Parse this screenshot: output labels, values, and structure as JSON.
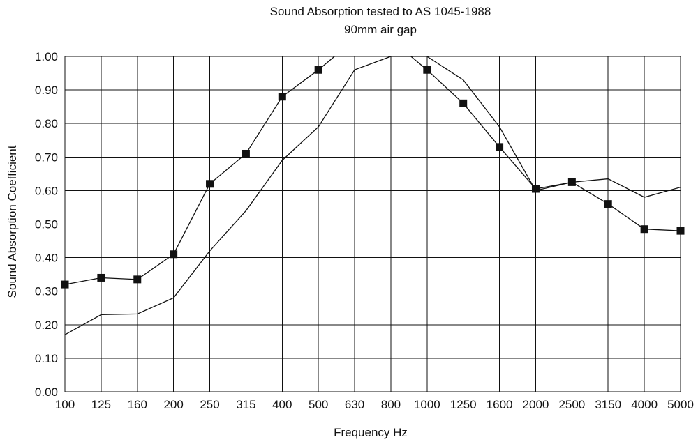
{
  "chart_data": {
    "type": "line",
    "title": "Sound Absorption tested to AS 1045-1988",
    "subtitle": "90mm air gap",
    "xlabel": "Frequency Hz",
    "ylabel": "Sound Absorption Coefficient",
    "categories": [
      "100",
      "125",
      "160",
      "200",
      "250",
      "315",
      "400",
      "500",
      "630",
      "800",
      "1000",
      "1250",
      "1600",
      "2000",
      "2500",
      "3150",
      "4000",
      "5000"
    ],
    "y_ticks": [
      "0.00",
      "0.10",
      "0.20",
      "0.30",
      "0.40",
      "0.50",
      "0.60",
      "0.70",
      "0.80",
      "0.90",
      "1.00"
    ],
    "ylim": [
      0,
      1.0
    ],
    "grid": true,
    "series": [
      {
        "marker": "square",
        "values": [
          0.32,
          0.34,
          0.335,
          0.41,
          0.62,
          0.71,
          0.88,
          0.96,
          1.05,
          1.05,
          0.96,
          0.86,
          0.73,
          0.605,
          0.625,
          0.56,
          0.485,
          0.48
        ]
      },
      {
        "marker": "none",
        "values": [
          0.17,
          0.23,
          0.232,
          0.28,
          0.42,
          0.54,
          0.69,
          0.79,
          0.96,
          1.0,
          1.0,
          0.93,
          0.79,
          0.6,
          0.625,
          0.635,
          0.58,
          0.61
        ]
      }
    ]
  }
}
